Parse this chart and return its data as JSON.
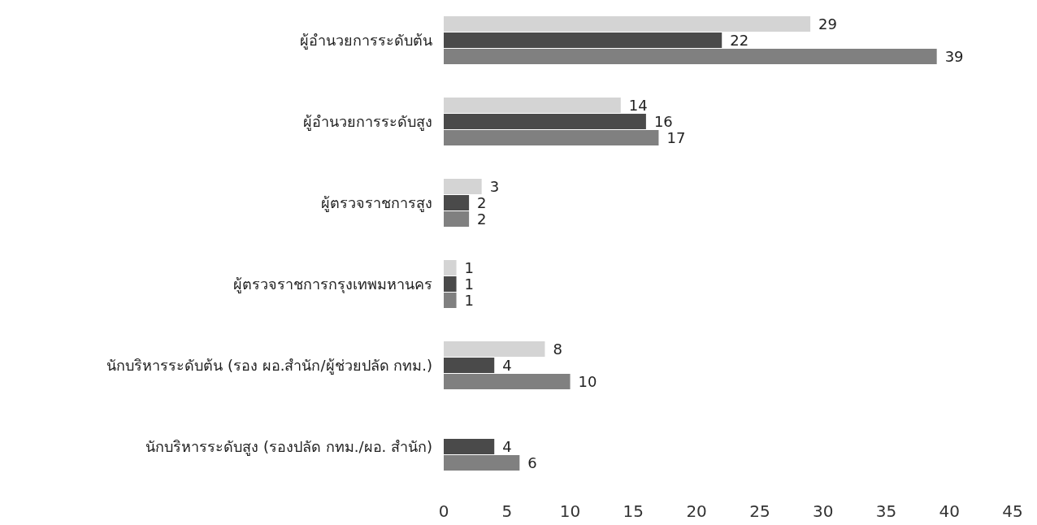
{
  "chart_data": {
    "type": "bar",
    "orientation": "horizontal",
    "categories": [
      "ผู้อำนวยการระดับต้น",
      "ผู้อำนวยการระดับสูง",
      "ผู้ตรวจราชการสูง",
      "ผู้ตรวจราชการกรุงเทพมหานคร",
      "นักบริหารระดับต้น (รอง ผอ.สำนัก/ผู้ช่วยปลัด กทม.)",
      "นักบริหารระดับสูง (รองปลัด กทม./ผอ. สำนัก)"
    ],
    "series": [
      {
        "color": "#d4d4d4",
        "values": [
          29,
          14,
          3,
          1,
          8,
          null
        ]
      },
      {
        "color": "#4a4a4a",
        "values": [
          22,
          16,
          2,
          1,
          4,
          4
        ]
      },
      {
        "color": "#808080",
        "values": [
          39,
          17,
          2,
          1,
          10,
          6
        ]
      }
    ],
    "xlim": [
      0,
      45
    ],
    "xticks": [
      0,
      5,
      10,
      15,
      20,
      25,
      30,
      35,
      40,
      45
    ],
    "data_labels": true
  }
}
